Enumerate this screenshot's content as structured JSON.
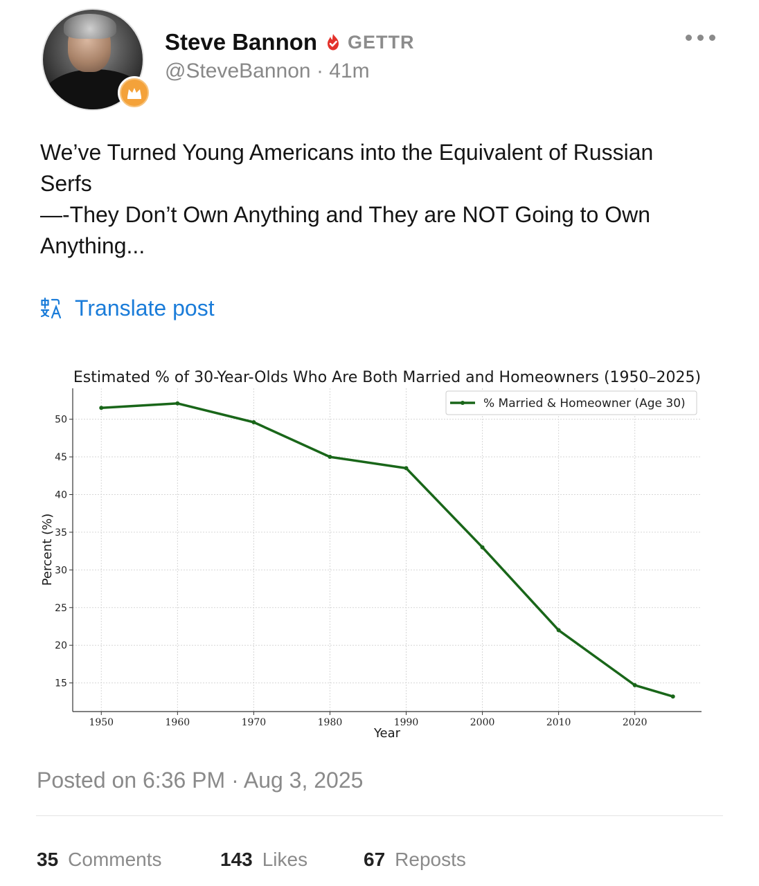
{
  "post": {
    "author_name": "Steve Bannon",
    "platform": "GETTR",
    "handle": "@SteveBannon",
    "time_ago": "41m",
    "text_lines": [
      "We’ve Turned Young Americans into the Equivalent of Russian",
      "Serfs",
      "—-They Don’t Own Anything and They are NOT Going to Own",
      "Anything..."
    ],
    "translate_label": "Translate post",
    "posted_on": "Posted on 6:36 PM · Aug 3, 2025"
  },
  "stats": {
    "comments_count": "35",
    "comments_label": "Comments",
    "likes_count": "143",
    "likes_label": "Likes",
    "reposts_count": "67",
    "reposts_label": "Reposts"
  },
  "icons": {
    "verified": "verified-flame-icon",
    "avatar_badge": "crown-icon",
    "translate": "translate-icon",
    "more": "more-horizontal-icon"
  },
  "colors": {
    "verified_red": "#e3322b",
    "link_blue": "#1a7cd9",
    "badge_orange": "#f4a23a",
    "line_green": "#196619"
  },
  "chart_data": {
    "type": "line",
    "title": "Estimated % of 30-Year-Olds Who Are Both Married and Homeowners (1950–2025)",
    "xlabel": "Year",
    "ylabel": "Percent (%)",
    "x": [
      1950,
      1960,
      1970,
      1980,
      1990,
      2000,
      2010,
      2020,
      2025
    ],
    "series": [
      {
        "name": "% Married & Homeowner (Age 30)",
        "values": [
          51.5,
          52.1,
          49.6,
          45.0,
          43.5,
          33.0,
          22.0,
          14.7,
          13.2
        ]
      }
    ],
    "xticks": [
      1950,
      1960,
      1970,
      1980,
      1990,
      2000,
      2010,
      2020
    ],
    "yticks": [
      15,
      20,
      25,
      30,
      35,
      40,
      45,
      50
    ],
    "xlim": [
      1946.25,
      2028.75
    ],
    "ylim": [
      11.2,
      54.1
    ],
    "grid": true,
    "legend_position": "upper right"
  }
}
